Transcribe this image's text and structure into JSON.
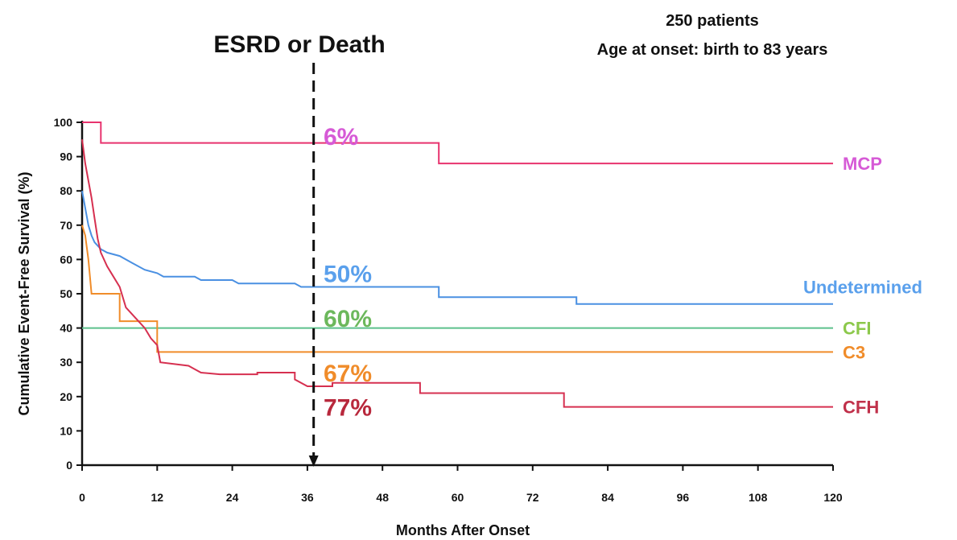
{
  "chart_data": {
    "type": "line",
    "step": true,
    "header": {
      "line1": "250 patients",
      "line2": "Age at onset: birth to 83 years"
    },
    "event_marker": {
      "label": "ESRD or Death",
      "x": 37
    },
    "xlabel": "Months After Onset",
    "ylabel": "Cumulative Event-Free Survival (%)",
    "xlim": [
      0,
      120
    ],
    "ylim": [
      0,
      100
    ],
    "xticks": [
      "0",
      "12",
      "24",
      "36",
      "48",
      "60",
      "72",
      "84",
      "96",
      "108",
      "120"
    ],
    "yticks": [
      "0",
      "10",
      "20",
      "30",
      "40",
      "50",
      "60",
      "70",
      "80",
      "90",
      "100"
    ],
    "grid": false,
    "series": [
      {
        "name": "MCP",
        "color": "#e8336e",
        "label_color": "#d65ad6",
        "annotation": "6%",
        "annotation_color": "#d65ad6",
        "annotation_y": 96,
        "label_y": 88,
        "points": [
          [
            0,
            100
          ],
          [
            3,
            100
          ],
          [
            3,
            94
          ],
          [
            57,
            94
          ],
          [
            57,
            88
          ],
          [
            120,
            88
          ]
        ]
      },
      {
        "name": "Undetermined",
        "color": "#4a90e2",
        "label_color": "#5aa0ec",
        "annotation": "50%",
        "annotation_color": "#5aa0ec",
        "annotation_y": 56,
        "label_y": 52,
        "points": [
          [
            0,
            80
          ],
          [
            0.5,
            75
          ],
          [
            1,
            70
          ],
          [
            1.5,
            67
          ],
          [
            2,
            65
          ],
          [
            3,
            63
          ],
          [
            4,
            62
          ],
          [
            6,
            61
          ],
          [
            8,
            59
          ],
          [
            10,
            57
          ],
          [
            12,
            56
          ],
          [
            13,
            55
          ],
          [
            18,
            55
          ],
          [
            19,
            54
          ],
          [
            24,
            54
          ],
          [
            25,
            53
          ],
          [
            34,
            53
          ],
          [
            35,
            52
          ],
          [
            57,
            52
          ],
          [
            57,
            49
          ],
          [
            79,
            49
          ],
          [
            79,
            47
          ],
          [
            120,
            47
          ]
        ]
      },
      {
        "name": "CFI",
        "color": "#5cc08c",
        "label_color": "#8cc84b",
        "annotation": "60%",
        "annotation_color": "#6cb85c",
        "annotation_y": 43,
        "label_y": 40,
        "points": [
          [
            0,
            40
          ],
          [
            120,
            40
          ]
        ]
      },
      {
        "name": "C3",
        "color": "#f08c2a",
        "label_color": "#f08c2a",
        "annotation": "67%",
        "annotation_color": "#f08c2a",
        "annotation_y": 27,
        "label_y": 33,
        "points": [
          [
            0,
            70
          ],
          [
            0.5,
            67
          ],
          [
            1,
            60
          ],
          [
            1.5,
            50
          ],
          [
            6,
            50
          ],
          [
            6,
            42
          ],
          [
            12,
            42
          ],
          [
            12,
            33
          ],
          [
            120,
            33
          ]
        ]
      },
      {
        "name": "CFH",
        "color": "#d63050",
        "label_color": "#c0304a",
        "annotation": "77%",
        "annotation_color": "#b8283c",
        "annotation_y": 17,
        "label_y": 17,
        "points": [
          [
            0,
            95
          ],
          [
            0.5,
            88
          ],
          [
            1,
            83
          ],
          [
            1.5,
            78
          ],
          [
            2,
            72
          ],
          [
            2.5,
            66
          ],
          [
            3,
            62
          ],
          [
            4,
            58
          ],
          [
            5,
            55
          ],
          [
            6,
            52
          ],
          [
            7,
            46
          ],
          [
            8,
            44
          ],
          [
            9,
            42
          ],
          [
            10,
            40
          ],
          [
            11,
            37
          ],
          [
            12,
            35
          ],
          [
            12.5,
            30
          ],
          [
            17,
            29
          ],
          [
            18,
            28
          ],
          [
            19,
            27
          ],
          [
            22,
            26.5
          ],
          [
            28,
            26.5
          ],
          [
            28,
            27
          ],
          [
            34,
            27
          ],
          [
            34,
            25
          ],
          [
            36,
            23
          ],
          [
            40,
            23
          ],
          [
            40,
            24
          ],
          [
            54,
            24
          ],
          [
            54,
            21
          ],
          [
            77,
            21
          ],
          [
            77,
            17
          ],
          [
            120,
            17
          ]
        ]
      }
    ]
  }
}
